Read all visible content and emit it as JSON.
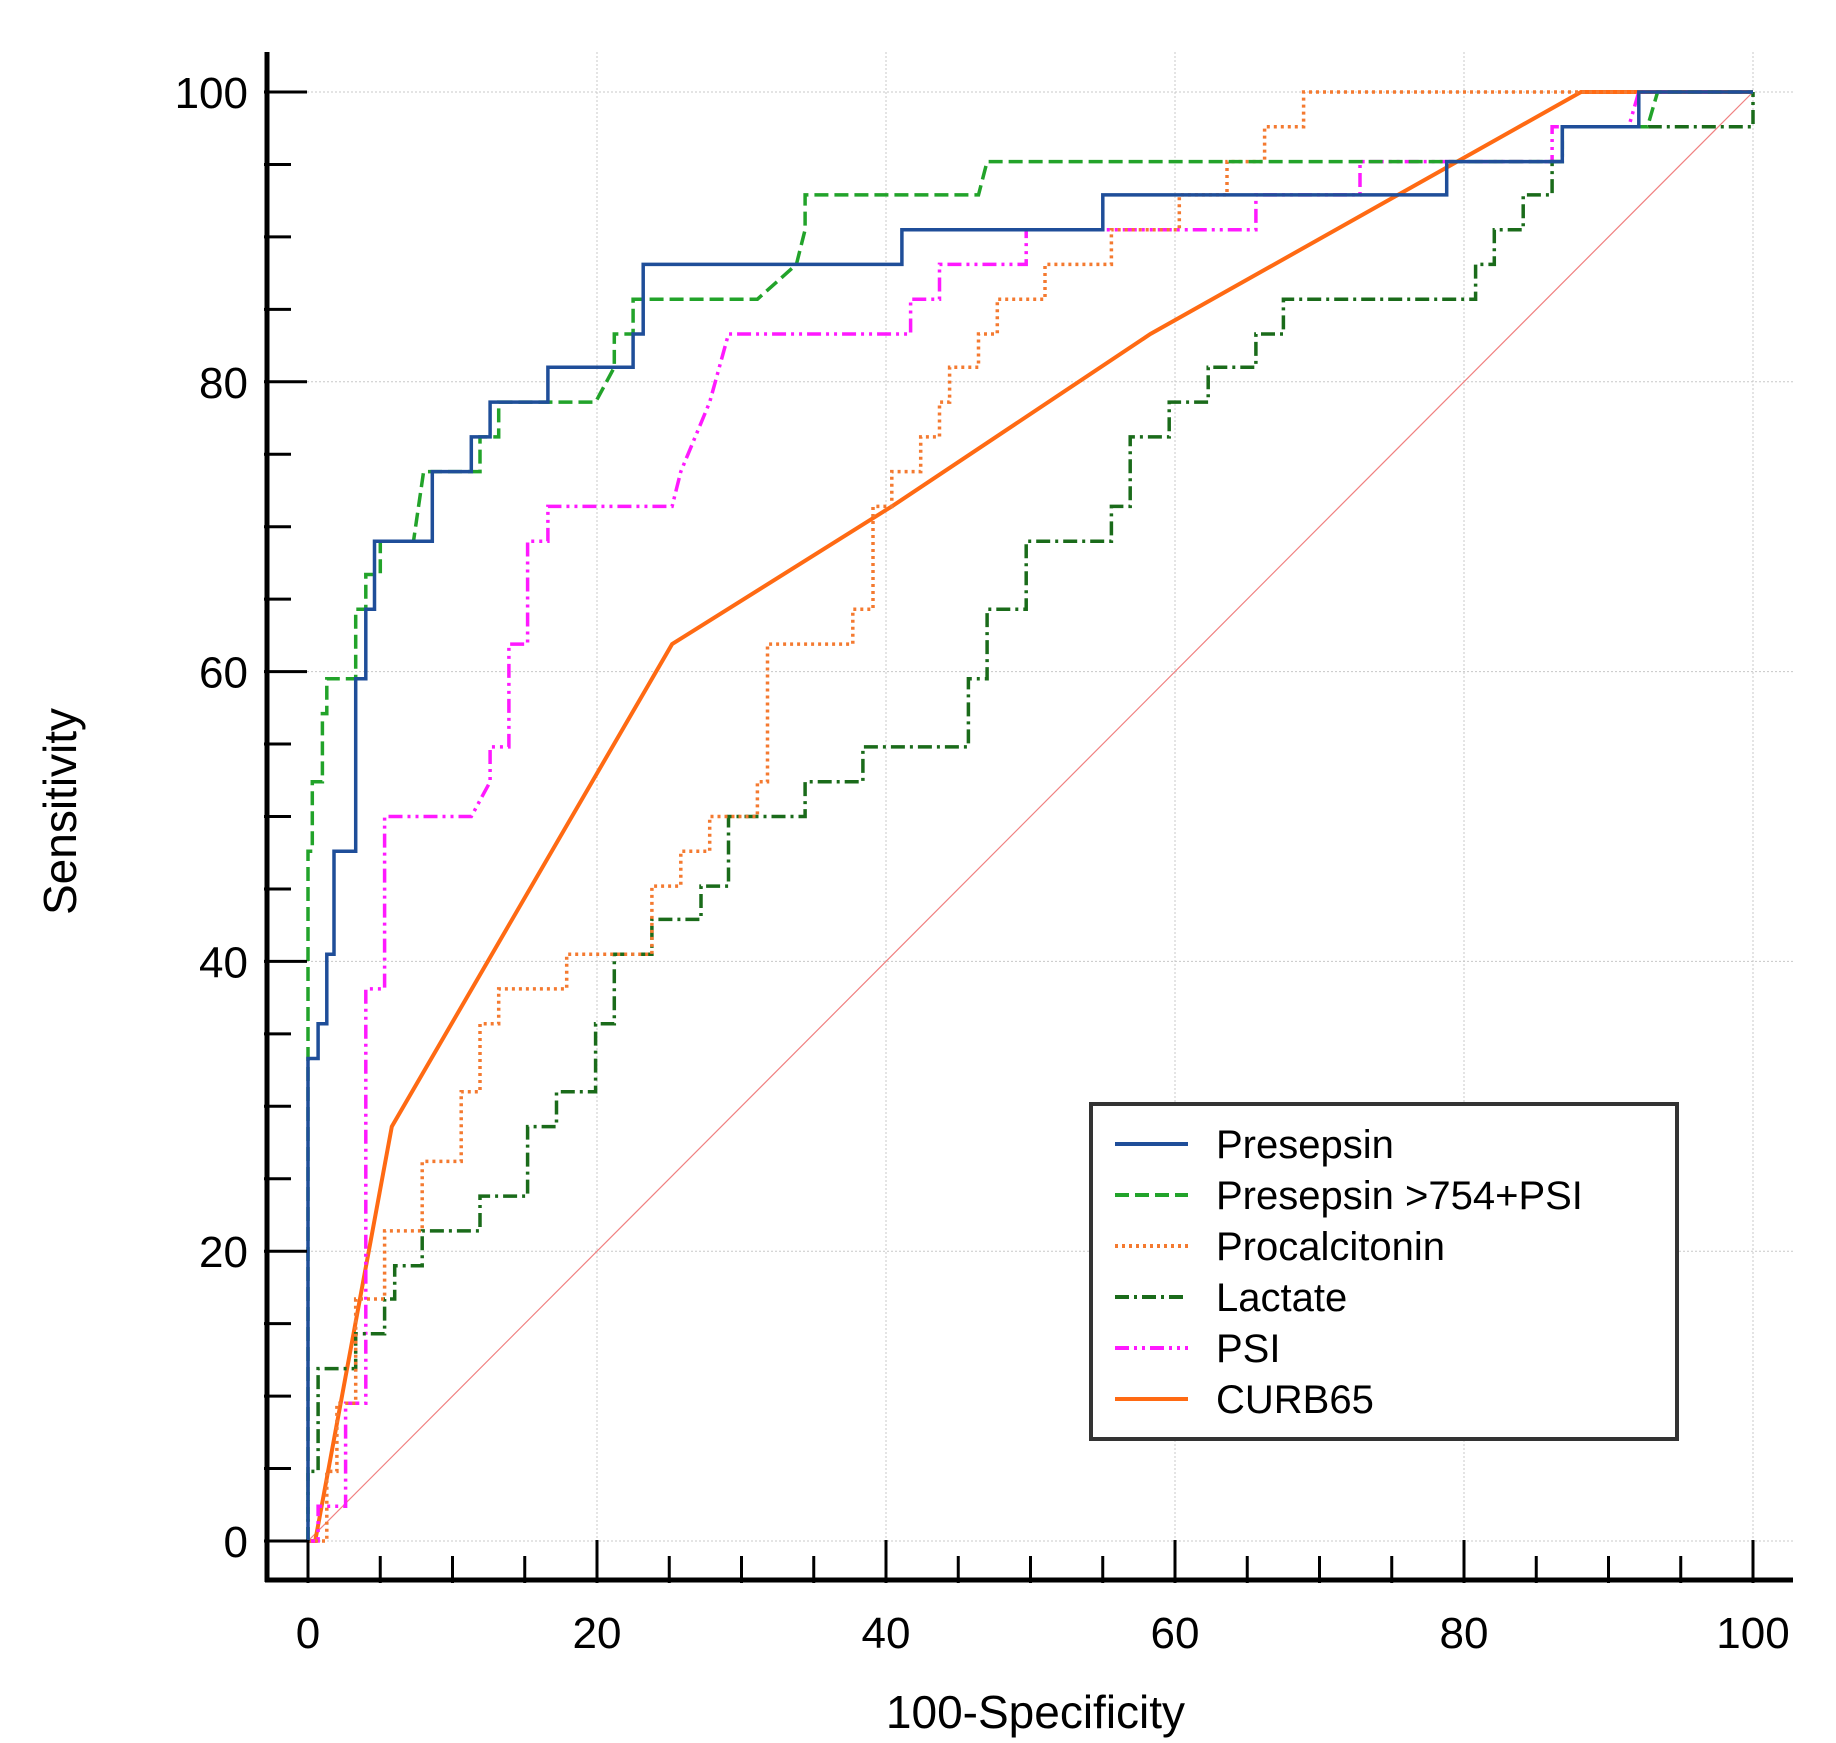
{
  "chart_data": {
    "type": "line",
    "title": "",
    "xlabel": "100-Specificity",
    "ylabel": "Sensitivity",
    "xlim": [
      0,
      100
    ],
    "ylim": [
      0,
      100
    ],
    "xticks": [
      0,
      20,
      40,
      60,
      80,
      100
    ],
    "yticks": [
      0,
      20,
      40,
      60,
      80,
      100
    ],
    "xtick_labels": [
      "0",
      "20",
      "40",
      "60",
      "80",
      "100"
    ],
    "ytick_labels": [
      "0",
      "20",
      "40",
      "60",
      "80",
      "100"
    ],
    "grid": true,
    "legend_position": "bottom-right",
    "reference_line": {
      "name": "reference diagonal",
      "x": [
        0,
        100
      ],
      "y": [
        0,
        100
      ],
      "color": "#f08080"
    },
    "series": [
      {
        "name": "Presepsin",
        "color": "#1f4e99",
        "dash": "solid",
        "x": [
          0,
          0,
          0.7,
          0.7,
          1.3,
          1.3,
          1.8,
          1.8,
          3.3,
          3.3,
          4.0,
          4.0,
          4.6,
          4.6,
          8.6,
          8.6,
          11.3,
          11.3,
          12.6,
          12.6,
          13.9,
          13.9,
          16.6,
          16.6,
          22.5,
          22.5,
          23.2,
          23.2,
          41.1,
          41.1,
          55.0,
          55.0,
          78.8,
          78.8,
          86.8,
          86.8,
          92.1,
          92.1,
          100
        ],
        "y": [
          0,
          33.3,
          33.3,
          35.7,
          35.7,
          40.5,
          40.5,
          47.6,
          47.6,
          59.5,
          59.5,
          64.3,
          64.3,
          69.0,
          69.0,
          73.8,
          73.8,
          76.2,
          76.2,
          78.6,
          78.6,
          78.6,
          78.6,
          81.0,
          81.0,
          83.3,
          83.3,
          88.1,
          88.1,
          90.5,
          90.5,
          92.9,
          92.9,
          95.2,
          95.2,
          97.6,
          97.6,
          100,
          100
        ]
      },
      {
        "name": "Presepsin >754+PSI",
        "color": "#22a32a",
        "dash": "dashed",
        "x": [
          0,
          0,
          0.3,
          0.3,
          1.0,
          1.0,
          1.3,
          1.3,
          3.3,
          3.3,
          4.0,
          4.0,
          5.0,
          5.0,
          7.3,
          8.0,
          8.0,
          11.9,
          11.9,
          13.2,
          13.2,
          19.9,
          21.2,
          21.2,
          22.5,
          22.5,
          23.8,
          23.8,
          31.1,
          33.8,
          34.4,
          34.4,
          46.4,
          47.0,
          47.0,
          86.8,
          86.8,
          92.7,
          93.4,
          100
        ],
        "y": [
          0,
          47.6,
          47.6,
          52.4,
          52.4,
          57.1,
          57.1,
          59.5,
          59.5,
          64.3,
          64.3,
          66.7,
          66.7,
          69.0,
          69.0,
          73.8,
          73.8,
          73.8,
          76.2,
          76.2,
          78.6,
          78.6,
          81.0,
          83.3,
          83.3,
          85.7,
          85.7,
          85.7,
          85.7,
          88.1,
          90.5,
          92.9,
          92.9,
          95.2,
          95.2,
          95.2,
          97.6,
          97.6,
          100,
          100
        ]
      },
      {
        "name": "Procalcitonin",
        "color": "#f47a30",
        "dash": "dotted",
        "x": [
          0,
          0.7,
          1.3,
          1.3,
          2.0,
          2.0,
          3.3,
          3.3,
          5.3,
          5.3,
          7.9,
          7.9,
          10.6,
          10.6,
          11.9,
          11.9,
          13.2,
          13.2,
          17.9,
          17.9,
          23.8,
          23.8,
          25.8,
          25.8,
          27.8,
          27.8,
          31.1,
          31.1,
          31.8,
          31.8,
          37.7,
          37.7,
          39.1,
          39.1,
          40.4,
          40.4,
          42.4,
          42.4,
          43.7,
          43.7,
          44.4,
          44.4,
          46.4,
          46.4,
          47.7,
          47.7,
          51.0,
          51.0,
          55.6,
          55.6,
          60.3,
          60.3,
          63.6,
          63.6,
          66.2,
          66.2,
          68.9,
          68.9,
          70.2,
          70.2,
          100
        ],
        "y": [
          0,
          0,
          0,
          4.8,
          4.8,
          9.5,
          9.5,
          16.7,
          16.7,
          21.4,
          21.4,
          26.2,
          26.2,
          31.0,
          31.0,
          35.7,
          35.7,
          38.1,
          38.1,
          40.5,
          40.5,
          45.2,
          45.2,
          47.6,
          47.6,
          50.0,
          50.0,
          52.4,
          52.4,
          61.9,
          61.9,
          64.3,
          64.3,
          71.4,
          71.4,
          73.8,
          73.8,
          76.2,
          76.2,
          78.6,
          78.6,
          81.0,
          81.0,
          83.3,
          83.3,
          85.7,
          85.7,
          88.1,
          88.1,
          90.5,
          90.5,
          92.9,
          92.9,
          95.2,
          95.2,
          97.6,
          97.6,
          100,
          100,
          100,
          100
        ]
      },
      {
        "name": "Lactate",
        "color": "#1a6b1a",
        "dash": "dashdot",
        "x": [
          0,
          0,
          0.7,
          0.7,
          2.6,
          2.6,
          3.3,
          3.3,
          5.3,
          5.3,
          6.0,
          6.0,
          7.9,
          7.9,
          9.3,
          9.3,
          11.9,
          11.9,
          15.2,
          15.2,
          17.2,
          17.2,
          19.9,
          19.9,
          21.2,
          21.2,
          23.8,
          23.8,
          25.8,
          25.8,
          27.2,
          27.2,
          29.1,
          29.1,
          31.8,
          31.8,
          34.4,
          34.4,
          35.8,
          35.8,
          38.4,
          38.4,
          45.7,
          45.7,
          47.0,
          47.0,
          49.7,
          49.7,
          55.6,
          55.6,
          56.9,
          56.9,
          59.6,
          59.6,
          62.3,
          62.3,
          65.6,
          65.6,
          67.5,
          67.5,
          74.2,
          74.2,
          80.8,
          80.8,
          82.1,
          82.1,
          84.1,
          84.1,
          86.1,
          86.1,
          86.8,
          86.8,
          100,
          100
        ],
        "y": [
          0,
          4.8,
          4.8,
          11.9,
          11.9,
          11.9,
          11.9,
          14.3,
          14.3,
          16.7,
          16.7,
          19.0,
          19.0,
          21.4,
          21.4,
          21.4,
          21.4,
          23.8,
          23.8,
          28.6,
          28.6,
          31.0,
          31.0,
          35.7,
          35.7,
          40.5,
          40.5,
          42.9,
          42.9,
          42.9,
          42.9,
          45.2,
          45.2,
          50.0,
          50.0,
          50.0,
          50.0,
          52.4,
          52.4,
          52.4,
          52.4,
          54.8,
          54.8,
          59.5,
          59.5,
          64.3,
          64.3,
          69.0,
          69.0,
          71.4,
          71.4,
          76.2,
          76.2,
          78.6,
          78.6,
          81.0,
          81.0,
          83.3,
          83.3,
          85.7,
          85.7,
          85.7,
          85.7,
          88.1,
          88.1,
          90.5,
          90.5,
          92.9,
          92.9,
          95.2,
          95.2,
          97.6,
          97.6,
          100
        ]
      },
      {
        "name": "PSI",
        "color": "#ff19ff",
        "dash": "dashdotdot",
        "x": [
          0,
          0.7,
          0.7,
          2.6,
          2.6,
          4.0,
          4.0,
          5.3,
          5.3,
          11.3,
          12.6,
          12.6,
          13.9,
          13.9,
          15.2,
          15.2,
          16.6,
          16.6,
          17.9,
          17.9,
          25.2,
          25.8,
          27.8,
          27.8,
          29.1,
          29.1,
          41.7,
          41.7,
          43.7,
          43.7,
          45.0,
          45.0,
          49.7,
          49.7,
          51.7,
          51.7,
          65.6,
          65.6,
          69.5,
          69.5,
          72.8,
          72.8,
          84.1,
          84.1,
          86.1,
          86.1,
          91.4,
          91.4,
          92.1,
          100
        ],
        "y": [
          0,
          0,
          2.4,
          2.4,
          9.5,
          9.5,
          38.1,
          38.1,
          50.0,
          50.0,
          52.4,
          54.8,
          54.8,
          61.9,
          61.9,
          69.0,
          69.0,
          71.4,
          71.4,
          71.4,
          71.4,
          73.8,
          78.6,
          78.6,
          83.3,
          83.3,
          83.3,
          85.7,
          85.7,
          88.1,
          88.1,
          88.1,
          88.1,
          90.5,
          90.5,
          90.5,
          90.5,
          92.9,
          92.9,
          92.9,
          92.9,
          95.2,
          95.2,
          95.2,
          95.2,
          97.6,
          97.6,
          97.6,
          100,
          100
        ]
      },
      {
        "name": "CURB65",
        "color": "#ff6a13",
        "dash": "solid",
        "x": [
          0,
          0.5,
          5.8,
          25.2,
          40.4,
          58.3,
          88.1,
          100
        ],
        "y": [
          0,
          0,
          28.6,
          61.9,
          71.4,
          83.3,
          100,
          100
        ]
      }
    ]
  }
}
